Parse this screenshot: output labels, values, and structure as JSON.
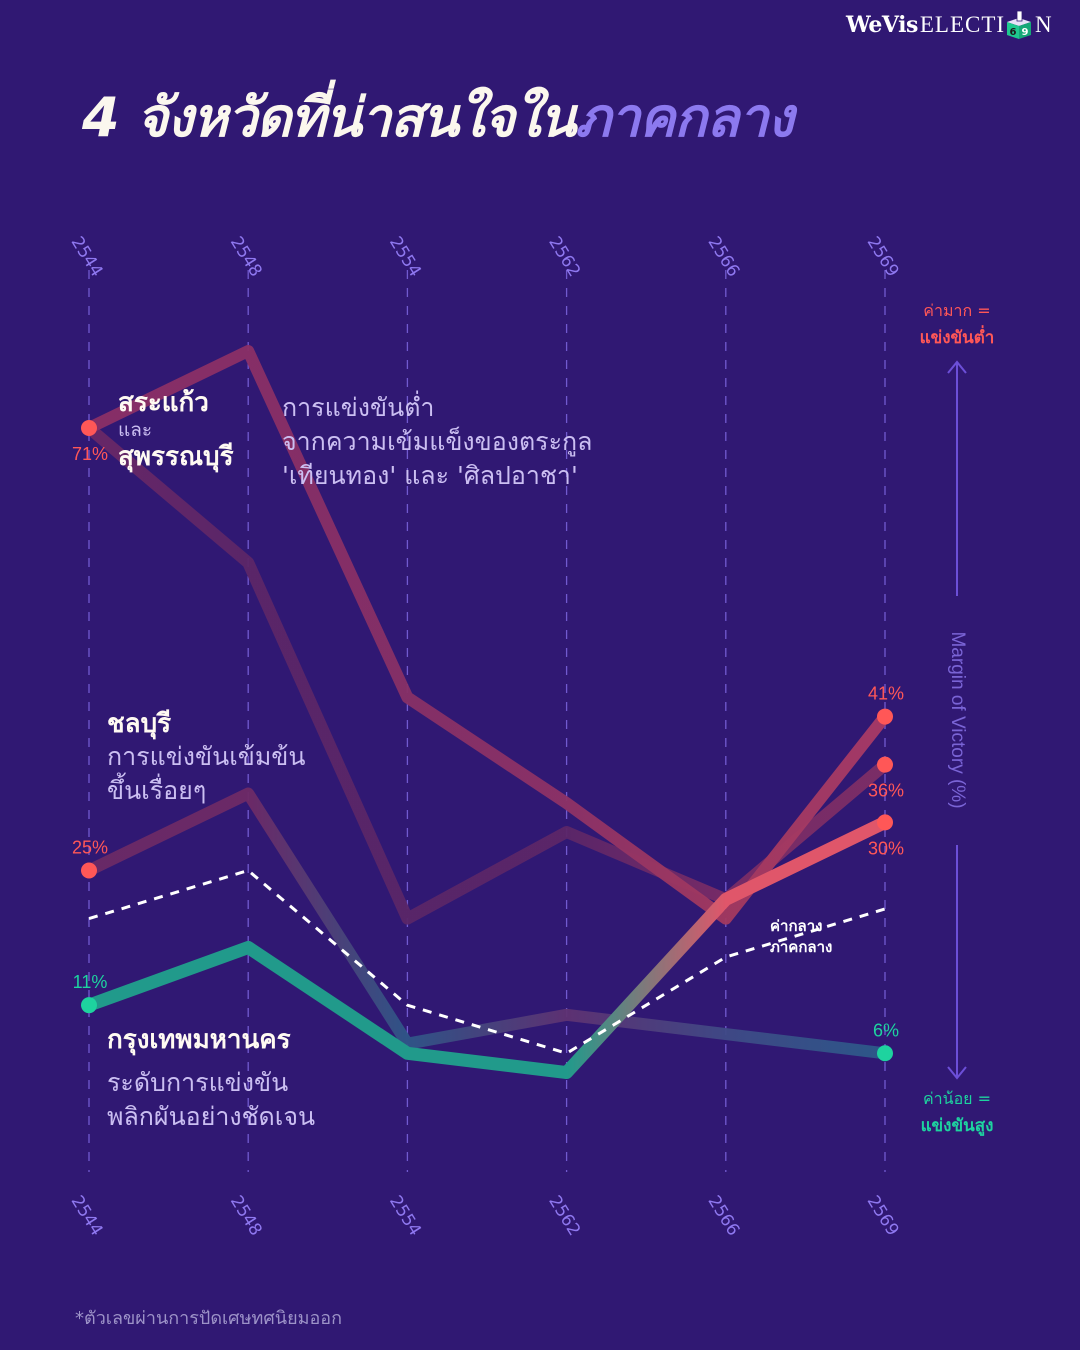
{
  "brand": {
    "name_bold": "WeVis",
    "name_rest": "ELECTI",
    "box_digits_a": "6",
    "box_digits_b": "9",
    "name_end": "N"
  },
  "title": {
    "main": "4 จังหวัดที่น่าสนใจใน",
    "highlight": "ภาคกลาง"
  },
  "annotations": {
    "group1": {
      "province_a": "สระแก้ว",
      "conjunction": "และ",
      "province_b": "สุพรรณบุรี",
      "desc": [
        "การแข่งขันต่ำ",
        "จากความเข้มแข็งของตระกูล",
        "'เทียนทอง' และ 'ศิลปอาชา'"
      ]
    },
    "group2": {
      "province": "ชลบุรี",
      "desc": [
        "การแข่งขันเข้มข้น",
        "ขึ้นเรื่อยๆ"
      ]
    },
    "group3": {
      "province": "กรุงเทพมหานคร",
      "desc": [
        "ระดับการแข่งขัน",
        "พลิกผันอย่างชัดเจน"
      ]
    },
    "average": {
      "line1": "ค่ากลาง",
      "line2": "ภาคกลาง"
    }
  },
  "axis": {
    "title": "Margin of Victory (%)",
    "high_caption": "ค่ามาก =",
    "high_meaning": "แข่งขันต่ำ",
    "low_caption": "ค่าน้อย =",
    "low_meaning": "แข่งขันสูง"
  },
  "footnote": "*ตัวเลขผ่านการปัดเศษทศนิยมออก",
  "colors": {
    "background": "#301873",
    "accent_purple": "#8c79ef",
    "coral": "#ff5757",
    "teal": "#1ed39f",
    "grid": "#7d66e0",
    "axis_arrow": "#6c4fd8"
  },
  "chart_data": {
    "type": "line",
    "title": "4 จังหวัดที่น่าสนใจในภาคกลาง",
    "xlabel": "",
    "ylabel": "Margin of Victory (%)",
    "x": [
      "2544",
      "2548",
      "2554",
      "2562",
      "2566",
      "2569"
    ],
    "ylim": [
      0,
      85
    ],
    "grid": "vertical-dashed",
    "series": [
      {
        "name": "สระแก้ว",
        "values": [
          71,
          79,
          43,
          32,
          20,
          41
        ],
        "point_colors": [
          "#8a2f66",
          "#8a2f66",
          "#873066",
          "#8e3266",
          "#a3395f",
          "#a83a66"
        ],
        "width": 12,
        "style": "solid"
      },
      {
        "name": "สุพรรณบุรี",
        "values": [
          71,
          57,
          20,
          29,
          22,
          36
        ],
        "point_colors": [
          "#6a2866",
          "#5c2668",
          "#5a2668",
          "#5c2668",
          "#7a2c66",
          "#7e2e66"
        ],
        "width": 12,
        "style": "solid"
      },
      {
        "name": "ชลบุรี",
        "values": [
          25,
          33,
          7,
          10,
          8,
          6
        ],
        "point_colors": [
          "#6b2a66",
          "#6e2a66",
          "#2f5688",
          "#5f3272",
          "#3f4a86",
          "#2c5a8a"
        ],
        "width": 12,
        "style": "solid"
      },
      {
        "name": "กรุงเทพมหานคร",
        "values": [
          11,
          17,
          6,
          4,
          22,
          30
        ],
        "point_colors": [
          "#219a8b",
          "#219a8b",
          "#219a8b",
          "#219a8b",
          "#e0566a",
          "#e0566a"
        ],
        "width": 13,
        "style": "solid"
      },
      {
        "name": "ค่ากลาง ภาคกลาง",
        "values": [
          20,
          25,
          11,
          6,
          16,
          21
        ],
        "point_colors": [
          "#ffffff",
          "#ffffff",
          "#ffffff",
          "#ffffff",
          "#ffffff",
          "#ffffff"
        ],
        "width": 3,
        "style": "dashed"
      }
    ],
    "markers": [
      {
        "series": 0,
        "index": 0,
        "color": "#ff5757"
      },
      {
        "series": 2,
        "index": 0,
        "color": "#ff5757"
      },
      {
        "series": 3,
        "index": 0,
        "color": "#1ed39f"
      },
      {
        "series": 0,
        "index": 5,
        "color": "#ff5757"
      },
      {
        "series": 1,
        "index": 5,
        "color": "#ff5757"
      },
      {
        "series": 3,
        "index": 5,
        "color": "#ff5757"
      },
      {
        "series": 2,
        "index": 5,
        "color": "#1ed39f"
      }
    ],
    "data_labels": [
      {
        "series": 0,
        "index": 0,
        "text": "71%",
        "pos": "below",
        "color": "#ff5757"
      },
      {
        "series": 2,
        "index": 0,
        "text": "25%",
        "pos": "above",
        "color": "#ff5757"
      },
      {
        "series": 3,
        "index": 0,
        "text": "11%",
        "pos": "above",
        "color": "#1ed39f"
      },
      {
        "series": 0,
        "index": 5,
        "text": "41%",
        "pos": "above",
        "color": "#ff5757"
      },
      {
        "series": 1,
        "index": 5,
        "text": "36%",
        "pos": "below",
        "color": "#ff5757"
      },
      {
        "series": 3,
        "index": 5,
        "text": "30%",
        "pos": "below",
        "color": "#ff5757"
      },
      {
        "series": 2,
        "index": 5,
        "text": "6%",
        "pos": "above",
        "color": "#1ed39f"
      }
    ]
  }
}
